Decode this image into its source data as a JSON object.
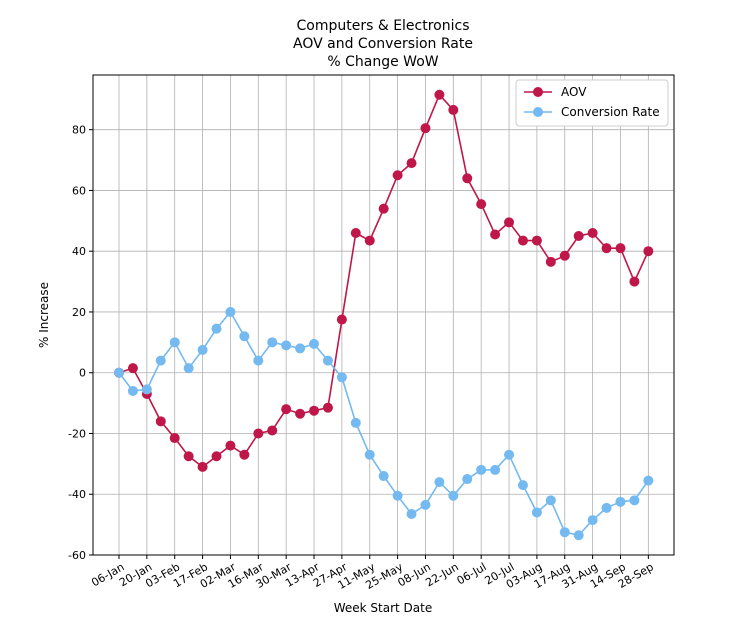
{
  "chart_data": {
    "type": "line",
    "title_lines": [
      "Computers & Electronics",
      "AOV and Conversion Rate",
      "% Change WoW"
    ],
    "xlabel": "Week Start Date",
    "ylabel": "% Increase",
    "ylim": [
      -60,
      98
    ],
    "yticks": [
      -60,
      -40,
      -20,
      0,
      20,
      40,
      60,
      80
    ],
    "xticklabels": [
      "06-Jan",
      "20-Jan",
      "03-Feb",
      "17-Feb",
      "02-Mar",
      "16-Mar",
      "30-Mar",
      "13-Apr",
      "27-Apr",
      "11-May",
      "25-May",
      "08-Jun",
      "22-Jun",
      "06-Jul",
      "20-Jul",
      "03-Aug",
      "17-Aug",
      "31-Aug",
      "14-Sep",
      "28-Sep"
    ],
    "grid": true,
    "legend_position": "top-right",
    "series": [
      {
        "name": "AOV",
        "color": "#c0174a",
        "values": [
          0,
          1.5,
          -7,
          -16,
          -21.5,
          -27.5,
          -31,
          -27.5,
          -24,
          -27,
          -20,
          -19,
          -12,
          -13.5,
          -12.5,
          -11.5,
          17.5,
          46,
          43.5,
          54,
          65,
          69,
          80.5,
          91.5,
          86.5,
          64,
          55.5,
          45.5,
          49.5,
          43.5,
          43.5,
          36.5,
          38.5,
          45,
          46,
          41,
          41,
          30,
          40
        ]
      },
      {
        "name": "Conversion Rate",
        "color": "#74b9ef",
        "values": [
          0,
          -6,
          -5.5,
          4,
          10,
          1.5,
          7.5,
          14.5,
          20,
          12,
          4,
          10,
          9,
          8,
          9.5,
          4,
          -1.5,
          -16.5,
          -27,
          -34,
          -40.5,
          -46.5,
          -43.5,
          -36,
          -40.5,
          -35,
          -32,
          -32,
          -27,
          -37,
          -46,
          -42,
          -52.5,
          -53.5,
          -48.5,
          -44.5,
          -42.5,
          -42,
          -35.5
        ]
      }
    ]
  }
}
